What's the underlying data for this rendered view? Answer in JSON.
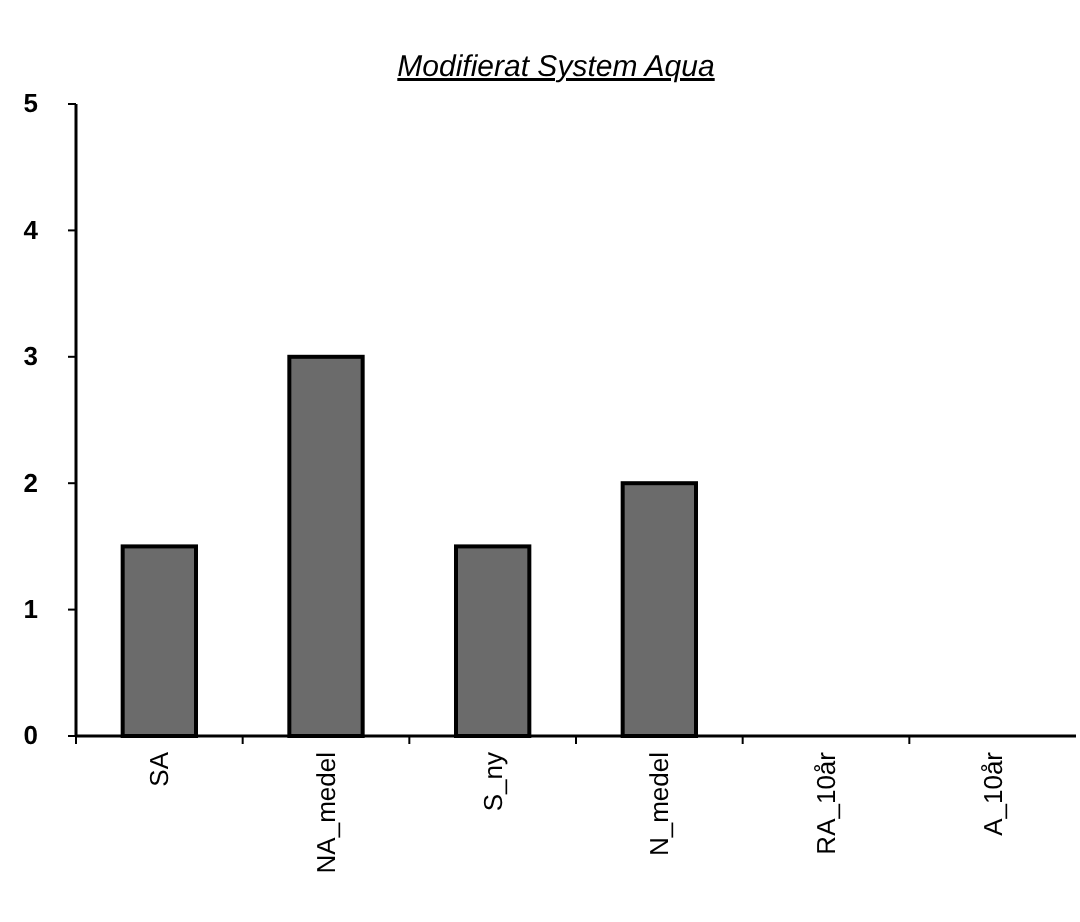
{
  "chart_data": {
    "type": "bar",
    "title": "Modifierat System Aqua",
    "categories": [
      "SA",
      "NA_medel",
      "S_ny",
      "N_medel",
      "RA_10år",
      "A_10år"
    ],
    "values": [
      1.5,
      3,
      1.5,
      2,
      0,
      0
    ],
    "color": "#6b6b6b",
    "ylim": [
      0,
      5
    ],
    "yticks": [
      0,
      1,
      2,
      3,
      4,
      5
    ],
    "grid": false
  }
}
